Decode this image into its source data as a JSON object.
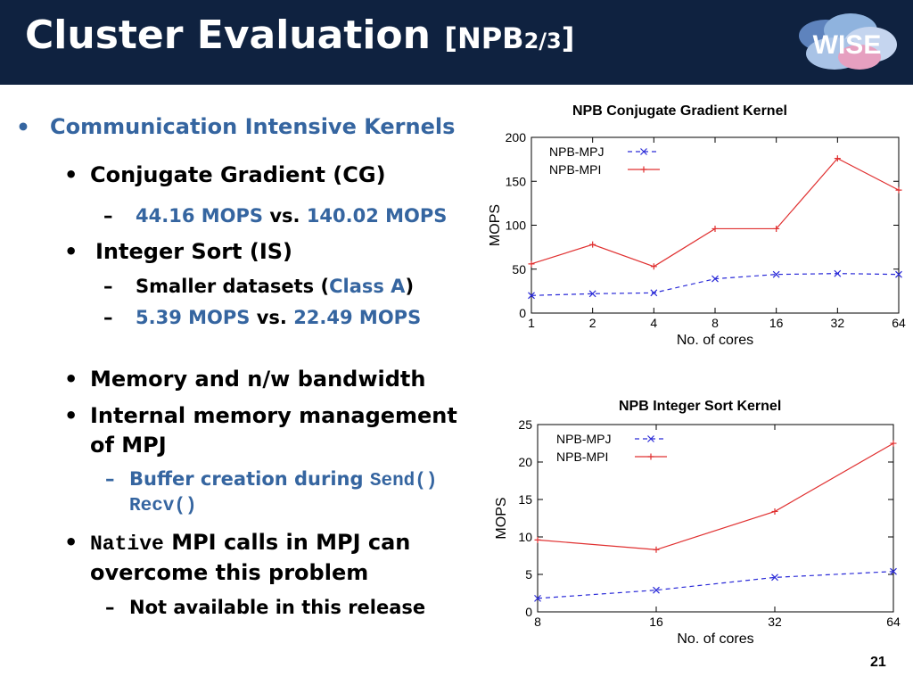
{
  "slide": {
    "title_main": "Cluster Evaluation",
    "title_bracket_open": "[NPB",
    "title_fraction": "2/3",
    "title_bracket_close": "]",
    "logo_text": "WISE",
    "page_number": "21"
  },
  "bullets": {
    "l1": "Communication Intensive Kernels",
    "cg": "Conjugate Gradient (CG)",
    "cg_a": "44.16 MOPS",
    "cg_vs": "vs.",
    "cg_b": "140.02 MOPS",
    "is": "Integer Sort (IS)",
    "is_small_a": "Smaller datasets (",
    "is_small_b": "Class A",
    "is_small_c": ")",
    "is_a": "5.39 MOPS",
    "is_vs": "vs.",
    "is_b": "22.49 MOPS",
    "mem": "Memory and n/w bandwidth",
    "internal_1": "Internal memory management",
    "internal_2": "of MPJ",
    "buffer_a": "Buffer creation during",
    "buffer_send": "Send()",
    "buffer_recv": "Recv()",
    "native_code": "Native",
    "native_rest": "MPI calls in MPJ can",
    "native_2": "overcome this problem",
    "not_avail": "Not available in this release",
    "bullet_glyph": "•",
    "dash_glyph": "–"
  },
  "colors": {
    "title_bg": "#0f2240",
    "accent_blue": "#3565a0",
    "mpj_series": "#2a2ad8",
    "mpi_series": "#e03030"
  },
  "chart_data": [
    {
      "type": "line",
      "title": "NPB Conjugate Gradient Kernel",
      "xlabel": "No. of cores",
      "ylabel": "MOPS",
      "categories": [
        "1",
        "2",
        "4",
        "8",
        "16",
        "32",
        "64"
      ],
      "ylim": [
        0,
        200
      ],
      "yticks": [
        0,
        50,
        100,
        150,
        200
      ],
      "legend": "top-left",
      "grid": false,
      "series": [
        {
          "name": "NPB-MPJ",
          "style": "dashed",
          "marker": "x",
          "color": "#2a2ad8",
          "values": [
            20,
            22,
            23,
            39,
            44,
            45,
            44
          ]
        },
        {
          "name": "NPB-MPI",
          "style": "solid",
          "marker": "+",
          "color": "#e03030",
          "values": [
            56,
            78,
            53,
            96,
            96,
            176,
            140
          ]
        }
      ]
    },
    {
      "type": "line",
      "title": "NPB Integer Sort Kernel",
      "xlabel": "No. of cores",
      "ylabel": "MOPS",
      "categories": [
        "8",
        "16",
        "32",
        "64"
      ],
      "ylim": [
        0,
        25
      ],
      "yticks": [
        0,
        5,
        10,
        15,
        20,
        25
      ],
      "legend": "top-left",
      "grid": false,
      "series": [
        {
          "name": "NPB-MPJ",
          "style": "dashed",
          "marker": "x",
          "color": "#2a2ad8",
          "values": [
            1.8,
            2.9,
            4.6,
            5.39
          ]
        },
        {
          "name": "NPB-MPI",
          "style": "solid",
          "marker": "+",
          "color": "#e03030",
          "values": [
            9.6,
            8.3,
            13.4,
            22.49
          ]
        }
      ]
    }
  ]
}
